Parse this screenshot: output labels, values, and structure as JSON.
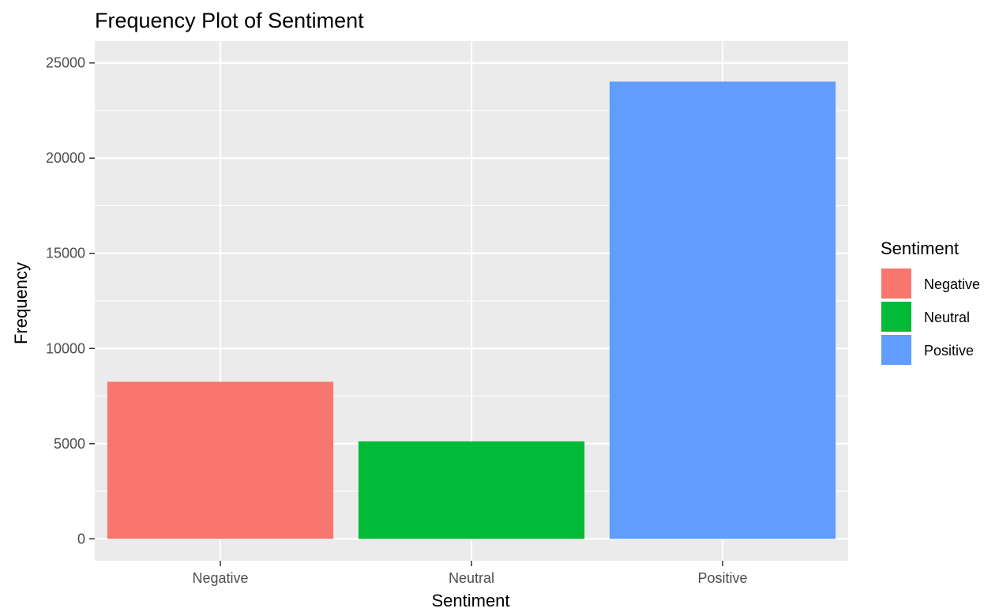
{
  "chart_data": {
    "type": "bar",
    "title": "Frequency Plot of Sentiment",
    "xlabel": "Sentiment",
    "ylabel": "Frequency",
    "categories": [
      "Negative",
      "Neutral",
      "Positive"
    ],
    "values": [
      8250,
      5120,
      24020
    ],
    "colors": [
      "#F8766D",
      "#00BA38",
      "#619CFF"
    ],
    "ylim": [
      -1150,
      26150
    ],
    "yticks": [
      0,
      5000,
      10000,
      15000,
      20000,
      25000
    ],
    "grid": true,
    "panel_background": "#EBEBEB",
    "legend": {
      "title": "Sentiment",
      "position": "right",
      "entries": [
        "Negative",
        "Neutral",
        "Positive"
      ]
    }
  }
}
